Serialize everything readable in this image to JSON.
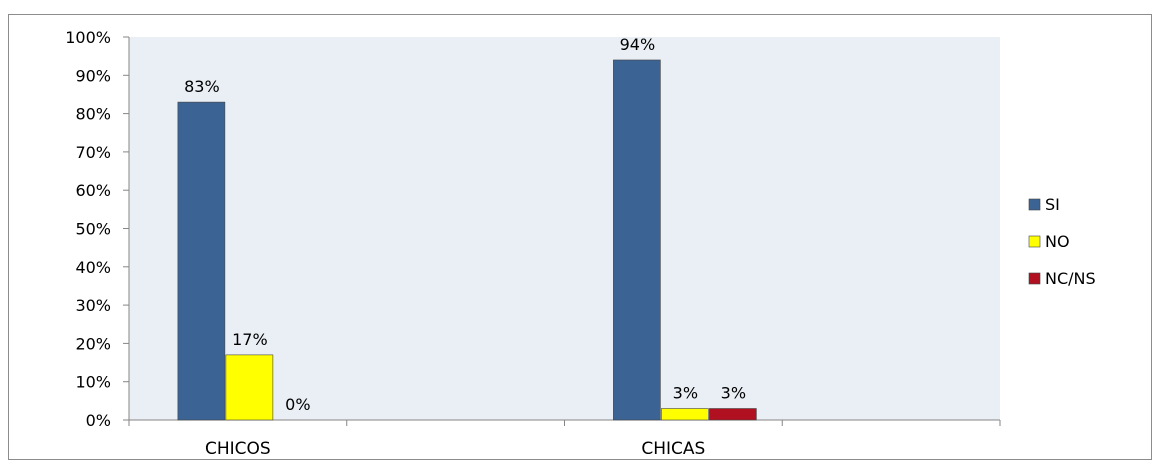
{
  "chart_data": {
    "type": "bar",
    "categories": [
      "CHICOS",
      "CHICAS"
    ],
    "series": [
      {
        "name": "SI",
        "values": [
          83,
          94
        ],
        "labels": [
          "83%",
          "94%"
        ],
        "color": "#3b6494"
      },
      {
        "name": "NO",
        "values": [
          17,
          3
        ],
        "labels": [
          "17%",
          "3%"
        ],
        "color": "#ffff00"
      },
      {
        "name": "NC/NS",
        "values": [
          0,
          3
        ],
        "labels": [
          "0%",
          "3%"
        ],
        "color": "#b01020"
      }
    ],
    "yticks": [
      "0%",
      "10%",
      "20%",
      "30%",
      "40%",
      "50%",
      "60%",
      "70%",
      "80%",
      "90%",
      "100%"
    ],
    "ylim": [
      0,
      100
    ],
    "title": "",
    "xlabel": "",
    "ylabel": "",
    "grid": false,
    "legend_position": "right",
    "plot_background": "#e9eff5"
  }
}
